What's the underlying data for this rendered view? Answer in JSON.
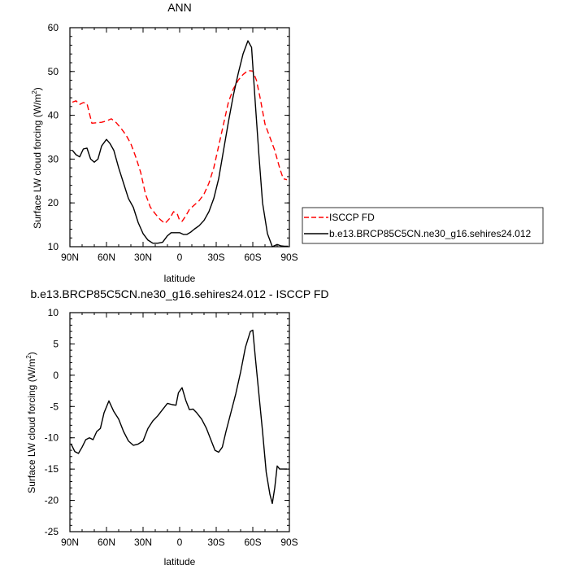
{
  "chart_data": [
    {
      "type": "line",
      "title": "ANN",
      "xlabel": "latitude",
      "ylabel": "Surface LW cloud forcing (W/m",
      "ylabel_sup": "2",
      "ylabel_close": ")",
      "xlim": [
        90,
        -90
      ],
      "ylim": [
        10,
        60
      ],
      "x_ticks": [
        {
          "v": 90,
          "label": "90N"
        },
        {
          "v": 60,
          "label": "60N"
        },
        {
          "v": 30,
          "label": "30N"
        },
        {
          "v": 0,
          "label": "0"
        },
        {
          "v": -30,
          "label": "30S"
        },
        {
          "v": -60,
          "label": "60S"
        },
        {
          "v": -90,
          "label": "90S"
        }
      ],
      "y_ticks": [
        10,
        20,
        30,
        40,
        50,
        60
      ],
      "legend_position": "right",
      "series": [
        {
          "name": "ISCCP FD",
          "color": "#ff0000",
          "dash": true,
          "x": [
            88,
            85,
            82,
            79,
            76,
            72,
            68,
            64,
            60,
            56,
            52,
            48,
            44,
            40,
            36,
            32,
            28,
            24,
            20,
            16,
            12,
            8,
            5,
            2,
            0,
            -2,
            -5,
            -8,
            -12,
            -16,
            -20,
            -24,
            -28,
            -32,
            -36,
            -40,
            -44,
            -48,
            -52,
            -56,
            -60,
            -63,
            -66,
            -70,
            -74,
            -78,
            -82,
            -85,
            -88
          ],
          "y": [
            43,
            43.3,
            42.5,
            42.9,
            42.7,
            38.2,
            38.3,
            38.4,
            38.7,
            39.2,
            38.3,
            37,
            35.5,
            33.5,
            30.5,
            27,
            22,
            19,
            17.5,
            16.2,
            15.3,
            16.5,
            18,
            17.5,
            16,
            15.8,
            17,
            18.5,
            19.5,
            20.5,
            22,
            24.5,
            28,
            33,
            38,
            43,
            46,
            48,
            49.3,
            50.2,
            50.1,
            48,
            44,
            38,
            35,
            32,
            28,
            25.5,
            25.3
          ]
        },
        {
          "name": "b.e13.BRCP85C5CN.ne30_g16.sehires24.012",
          "color": "#000000",
          "dash": false,
          "x": [
            88,
            85,
            82,
            79,
            76,
            73,
            70,
            67,
            64,
            60,
            57,
            54,
            50,
            46,
            42,
            38,
            34,
            30,
            26,
            22,
            18,
            14,
            10,
            7,
            4,
            2,
            0,
            -3,
            -6,
            -9,
            -12,
            -16,
            -20,
            -24,
            -28,
            -32,
            -36,
            -40,
            -44,
            -48,
            -52,
            -56,
            -59,
            -62,
            -65,
            -68,
            -72,
            -76,
            -80,
            -83,
            -86,
            -89
          ],
          "y": [
            32,
            31,
            30.5,
            32.3,
            32.5,
            30,
            29.3,
            30,
            33,
            34.5,
            33.5,
            32,
            28,
            24.5,
            21,
            19,
            15.5,
            13,
            11.5,
            10.8,
            10.8,
            11,
            12.5,
            13.2,
            13.2,
            13.2,
            13.2,
            12.8,
            12.8,
            13.3,
            14,
            14.8,
            16,
            18,
            21,
            25.5,
            32,
            38.5,
            44.5,
            49.5,
            54,
            57,
            55.5,
            43,
            31,
            20,
            13,
            10,
            10.5,
            10.2,
            10.1,
            10.1
          ]
        }
      ]
    },
    {
      "type": "line",
      "title": "b.e13.BRCP85C5CN.ne30_g16.sehires24.012 - ISCCP FD",
      "xlabel": "latitude",
      "ylabel": "Surface LW cloud forcing (W/m",
      "ylabel_sup": "2",
      "ylabel_close": ")",
      "xlim": [
        90,
        -90
      ],
      "ylim": [
        -25,
        10
      ],
      "x_ticks": [
        {
          "v": 90,
          "label": "90N"
        },
        {
          "v": 60,
          "label": "60N"
        },
        {
          "v": 30,
          "label": "30N"
        },
        {
          "v": 0,
          "label": "0"
        },
        {
          "v": -30,
          "label": "30S"
        },
        {
          "v": -60,
          "label": "60S"
        },
        {
          "v": -90,
          "label": "90S"
        }
      ],
      "y_ticks": [
        {
          "v": 10,
          "label": "10"
        },
        {
          "v": 5,
          "label": "5"
        },
        {
          "v": 0,
          "label": "0"
        },
        {
          "v": -5,
          "label": "-5"
        },
        {
          "v": -10,
          "label": "-10"
        },
        {
          "v": -15,
          "label": "-15"
        },
        {
          "v": -20,
          "label": "-20"
        },
        {
          "v": -25,
          "label": "-25"
        }
      ],
      "series": [
        {
          "color": "#000000",
          "dash": false,
          "x": [
            89,
            86,
            83,
            80,
            77,
            74,
            71,
            68,
            65,
            62,
            58,
            54,
            50,
            46,
            42,
            38,
            34,
            30,
            26,
            22,
            18,
            14,
            10,
            6,
            3,
            1,
            -2,
            -5,
            -8,
            -11,
            -14,
            -18,
            -22,
            -26,
            -29,
            -32,
            -35,
            -38,
            -42,
            -46,
            -50,
            -54,
            -58,
            -60,
            -62,
            -65,
            -68,
            -71,
            -74,
            -76,
            -78,
            -80,
            -82,
            -85,
            -88
          ],
          "y": [
            -11,
            -12.2,
            -12.5,
            -11.5,
            -10.3,
            -10,
            -10.3,
            -9,
            -8.5,
            -6,
            -4.1,
            -5.8,
            -7,
            -9,
            -10.5,
            -11.2,
            -11,
            -10.5,
            -8.5,
            -7.3,
            -6.5,
            -5.5,
            -4.5,
            -4.7,
            -4.8,
            -2.8,
            -2,
            -4,
            -5.5,
            -5.4,
            -6,
            -7,
            -8.5,
            -10.5,
            -12,
            -12.3,
            -11.5,
            -9,
            -6,
            -3,
            0.5,
            4.5,
            7,
            7.2,
            3,
            -3,
            -9,
            -15.5,
            -19,
            -20.5,
            -18,
            -14.5,
            -15,
            -15,
            -15
          ]
        }
      ]
    }
  ]
}
